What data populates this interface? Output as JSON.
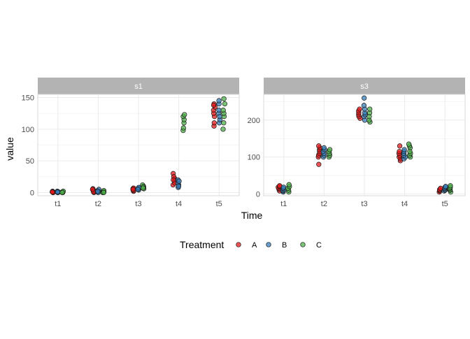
{
  "chart_data": {
    "type": "scatter",
    "xlabel": "Time",
    "ylabel": "value",
    "categories": [
      "t1",
      "t2",
      "t3",
      "t4",
      "t5"
    ],
    "legend": {
      "title": "Treatment",
      "placement": "bottom",
      "entries": [
        {
          "name": "A",
          "color": "#E41A1C"
        },
        {
          "name": "B",
          "color": "#377EB8"
        },
        {
          "name": "C",
          "color": "#4DAF4A"
        }
      ]
    },
    "grid": true,
    "panels": [
      {
        "strip": "s1",
        "ylim": [
          -5,
          155
        ],
        "yticks": [
          0,
          50,
          100,
          150
        ],
        "series": [
          {
            "name": "A",
            "values": [
              [
                0,
                0,
                1,
                2,
                1,
                0,
                1
              ],
              [
                0,
                2,
                4,
                6,
                3,
                1,
                5
              ],
              [
                2,
                4,
                5,
                6,
                3,
                7,
                5
              ],
              [
                12,
                18,
                22,
                30,
                25,
                15,
                20
              ],
              [
                105,
                110,
                120,
                125,
                130,
                135,
                140,
                138
              ]
            ]
          },
          {
            "name": "B",
            "values": [
              [
                0,
                1,
                2,
                1,
                0,
                1
              ],
              [
                1,
                2,
                3,
                5,
                0,
                2
              ],
              [
                4,
                6,
                7,
                8,
                5
              ],
              [
                8,
                12,
                15,
                20,
                10,
                18
              ],
              [
                110,
                115,
                125,
                130,
                140,
                145,
                120
              ]
            ]
          },
          {
            "name": "C",
            "values": [
              [
                0,
                1,
                0,
                1,
                2,
                0
              ],
              [
                0,
                1,
                2,
                1,
                3,
                0
              ],
              [
                6,
                8,
                10,
                12,
                9,
                7
              ],
              [
                98,
                102,
                110,
                115,
                120,
                123
              ],
              [
                100,
                110,
                120,
                125,
                130,
                140,
                148
              ]
            ]
          }
        ]
      },
      {
        "strip": "s3",
        "ylim": [
          -5,
          270
        ],
        "yticks": [
          0,
          100,
          200
        ],
        "series": [
          {
            "name": "A",
            "values": [
              [
                8,
                12,
                15,
                18,
                20,
                22
              ],
              [
                80,
                100,
                105,
                110,
                115,
                120,
                125,
                130
              ],
              [
                205,
                210,
                215,
                220,
                225,
                230
              ],
              [
                90,
                95,
                100,
                105,
                110,
                115,
                130
              ],
              [
                5,
                8,
                10,
                12,
                15
              ]
            ]
          },
          {
            "name": "B",
            "values": [
              [
                5,
                8,
                10,
                12,
                15,
                18
              ],
              [
                100,
                105,
                110,
                115,
                120,
                125
              ],
              [
                200,
                210,
                215,
                220,
                230,
                240,
                260
              ],
              [
                95,
                100,
                105,
                110,
                115,
                120
              ],
              [
                8,
                10,
                12,
                15,
                18,
                20
              ]
            ]
          },
          {
            "name": "C",
            "values": [
              [
                5,
                10,
                15,
                20,
                25
              ],
              [
                100,
                105,
                110,
                115,
                120
              ],
              [
                195,
                200,
                210,
                220,
                230
              ],
              [
                100,
                105,
                110,
                115,
                125,
                130,
                135
              ],
              [
                5,
                10,
                12,
                15,
                18,
                22
              ]
            ]
          }
        ]
      }
    ]
  }
}
